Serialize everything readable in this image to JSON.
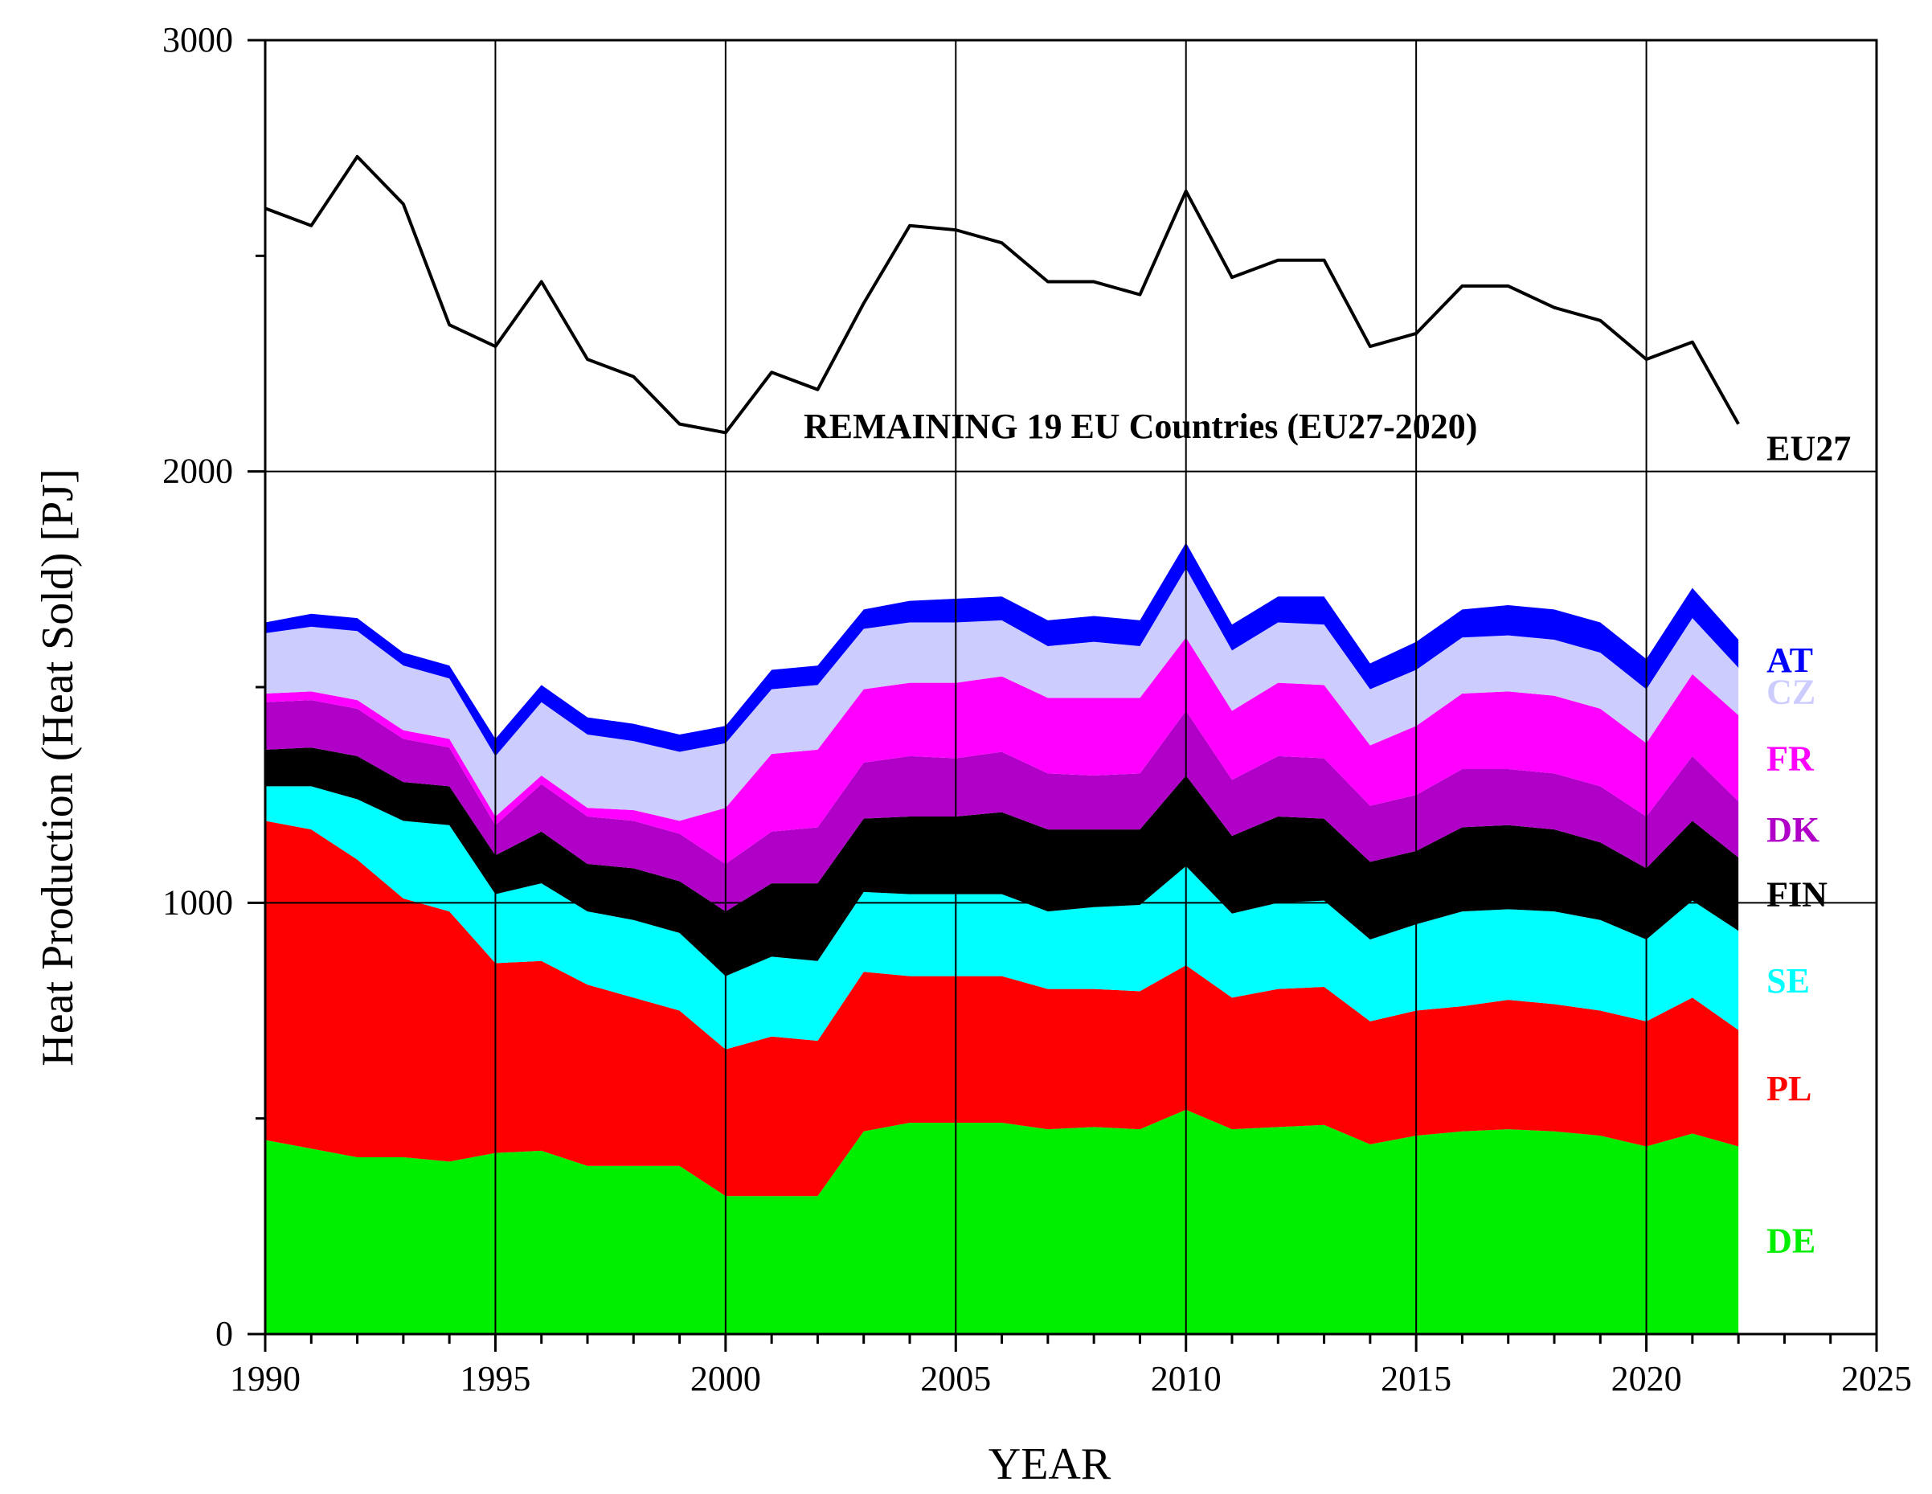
{
  "chart_data": {
    "type": "area",
    "stacked": true,
    "title": "",
    "xlabel": "YEAR",
    "ylabel": "Heat Production (Heat Sold) [PJ]",
    "xlim": [
      1990,
      2025
    ],
    "ylim": [
      0,
      3000
    ],
    "x_ticks": [
      "1990",
      "1995",
      "2000",
      "2005",
      "2010",
      "2015",
      "2020",
      "2025"
    ],
    "y_ticks": [
      "0",
      "1000",
      "2000",
      "3000"
    ],
    "grid": true,
    "annotation": "REMAINING 19 EU Countries (EU27-2020)",
    "x": [
      1990,
      1991,
      1992,
      1993,
      1994,
      1995,
      1996,
      1997,
      1998,
      1999,
      2000,
      2001,
      2002,
      2003,
      2004,
      2005,
      2006,
      2007,
      2008,
      2009,
      2010,
      2011,
      2012,
      2013,
      2014,
      2015,
      2016,
      2017,
      2018,
      2019,
      2020,
      2021,
      2022
    ],
    "series": [
      {
        "name": "DE",
        "color": "#00ee00",
        "values": [
          450,
          430,
          410,
          410,
          400,
          420,
          425,
          390,
          390,
          390,
          320,
          320,
          320,
          470,
          490,
          490,
          490,
          475,
          480,
          475,
          520,
          475,
          480,
          485,
          440,
          460,
          470,
          475,
          470,
          460,
          435,
          465,
          435
        ]
      },
      {
        "name": "PL",
        "color": "#ff0000",
        "values": [
          740,
          740,
          690,
          600,
          580,
          440,
          440,
          420,
          390,
          360,
          340,
          370,
          360,
          370,
          340,
          340,
          340,
          325,
          320,
          320,
          335,
          305,
          320,
          320,
          285,
          290,
          290,
          300,
          295,
          290,
          290,
          315,
          270
        ]
      },
      {
        "name": "SE",
        "color": "#00ffff",
        "values": [
          80,
          100,
          140,
          180,
          200,
          160,
          180,
          170,
          180,
          180,
          170,
          185,
          185,
          185,
          190,
          190,
          190,
          180,
          190,
          200,
          230,
          195,
          200,
          200,
          190,
          200,
          220,
          210,
          215,
          210,
          190,
          225,
          230
        ]
      },
      {
        "name": "FIN",
        "color": "#000000",
        "values": [
          85,
          90,
          100,
          90,
          90,
          90,
          120,
          110,
          120,
          120,
          150,
          170,
          180,
          170,
          180,
          180,
          190,
          190,
          180,
          175,
          210,
          180,
          200,
          190,
          180,
          170,
          195,
          195,
          190,
          180,
          165,
          185,
          170
        ]
      },
      {
        "name": "DK",
        "color": "#b000c8",
        "values": [
          110,
          110,
          110,
          100,
          90,
          70,
          110,
          110,
          110,
          110,
          110,
          120,
          130,
          130,
          140,
          135,
          140,
          130,
          125,
          130,
          150,
          130,
          140,
          140,
          130,
          130,
          135,
          130,
          130,
          130,
          120,
          150,
          130
        ]
      },
      {
        "name": "FR",
        "color": "#ff00ff",
        "values": [
          20,
          20,
          20,
          20,
          20,
          20,
          20,
          20,
          25,
          30,
          130,
          180,
          180,
          170,
          170,
          175,
          175,
          175,
          180,
          175,
          170,
          160,
          170,
          170,
          140,
          160,
          175,
          180,
          180,
          180,
          170,
          190,
          200
        ]
      },
      {
        "name": "CZ",
        "color": "#ccccff",
        "values": [
          140,
          150,
          160,
          150,
          140,
          140,
          170,
          170,
          160,
          160,
          150,
          150,
          150,
          140,
          140,
          140,
          130,
          120,
          130,
          120,
          160,
          140,
          140,
          140,
          130,
          130,
          130,
          130,
          130,
          130,
          125,
          130,
          110
        ]
      },
      {
        "name": "AT",
        "color": "#0000ff",
        "values": [
          25,
          30,
          30,
          30,
          30,
          40,
          40,
          40,
          40,
          40,
          40,
          45,
          45,
          45,
          50,
          55,
          55,
          60,
          60,
          60,
          60,
          60,
          60,
          65,
          60,
          65,
          65,
          70,
          70,
          70,
          70,
          70,
          65
        ]
      }
    ],
    "eu27_total": {
      "name": "EU27",
      "color": "#000000",
      "values": [
        2610,
        2570,
        2730,
        2620,
        2340,
        2290,
        2440,
        2260,
        2220,
        2110,
        2090,
        2230,
        2190,
        2390,
        2570,
        2560,
        2530,
        2440,
        2440,
        2410,
        2650,
        2450,
        2490,
        2490,
        2290,
        2320,
        2430,
        2430,
        2380,
        2350,
        2260,
        2300,
        2110
      ]
    }
  }
}
